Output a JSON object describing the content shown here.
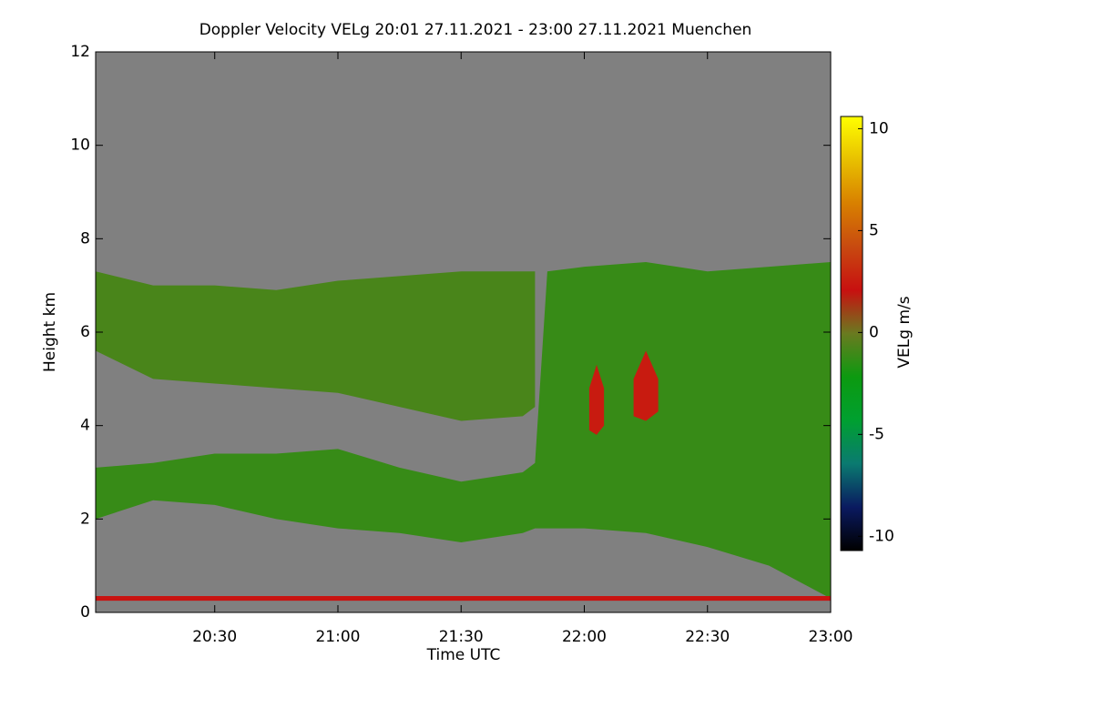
{
  "chart_data": {
    "type": "heatmap",
    "title": "Doppler Velocity VELg   20:01 27.11.2021 - 23:00 27.11.2021 Muenchen",
    "x_label": "Time UTC",
    "y_label": "Height km",
    "xlim": [
      20.0167,
      23.0
    ],
    "xticks": [
      {
        "value": 20.5,
        "label": "20:30"
      },
      {
        "value": 21.0,
        "label": "21:00"
      },
      {
        "value": 21.5,
        "label": "21:30"
      },
      {
        "value": 22.0,
        "label": "22:00"
      },
      {
        "value": 22.5,
        "label": "22:30"
      },
      {
        "value": 23.0,
        "label": "23:00"
      }
    ],
    "ylim": [
      0,
      12
    ],
    "yticks": [
      0,
      2,
      4,
      6,
      8,
      10,
      12
    ],
    "background": "#808080",
    "colorbar": {
      "label": "VELg m/s",
      "lim": [
        -10.7,
        10.6
      ],
      "ticks": [
        -10,
        -5,
        0,
        5,
        10
      ],
      "colors": [
        "#000000",
        "#0a1a60",
        "#0a7a70",
        "#00a030",
        "#0c9a10",
        "#6a7a20",
        "#c81010",
        "#c84a10",
        "#d88000",
        "#e8c000",
        "#ffff00"
      ]
    },
    "layers": [
      {
        "x": [
          20.0167,
          20.25,
          20.5,
          20.75,
          21.0,
          21.25,
          21.5,
          21.75,
          21.8
        ],
        "top": [
          7.3,
          7.0,
          7.0,
          6.9,
          7.1,
          7.2,
          7.3,
          7.3,
          7.3
        ],
        "base": [
          5.6,
          5.0,
          4.9,
          4.8,
          4.7,
          4.4,
          4.1,
          4.2,
          4.4
        ],
        "value": -0.8
      },
      {
        "x": [
          20.0167,
          20.25,
          20.5,
          20.75,
          21.0,
          21.25,
          21.5,
          21.75,
          21.8,
          21.85,
          22.0,
          22.25,
          22.5,
          22.75,
          23.0
        ],
        "top": [
          3.1,
          3.2,
          3.4,
          3.4,
          3.5,
          3.1,
          2.8,
          3.0,
          3.2,
          7.3,
          7.4,
          7.5,
          7.3,
          7.4,
          7.5
        ],
        "base": [
          2.0,
          2.4,
          2.3,
          2.0,
          1.8,
          1.7,
          1.5,
          1.7,
          1.8,
          1.8,
          1.8,
          1.7,
          1.4,
          1.0,
          0.3
        ],
        "value": -1.2
      },
      {
        "x": [
          22.02,
          22.05,
          22.08
        ],
        "top": [
          4.8,
          5.3,
          4.8
        ],
        "base": [
          3.9,
          3.8,
          4.0
        ],
        "value": 2.5
      },
      {
        "x": [
          22.2,
          22.25,
          22.3
        ],
        "top": [
          5.0,
          5.6,
          5.0
        ],
        "base": [
          4.2,
          4.1,
          4.3
        ],
        "value": 2.5
      },
      {
        "x": [
          20.0167,
          23.0
        ],
        "top": [
          0.35,
          0.35
        ],
        "base": [
          0.25,
          0.25
        ],
        "value": 2.2
      }
    ]
  }
}
